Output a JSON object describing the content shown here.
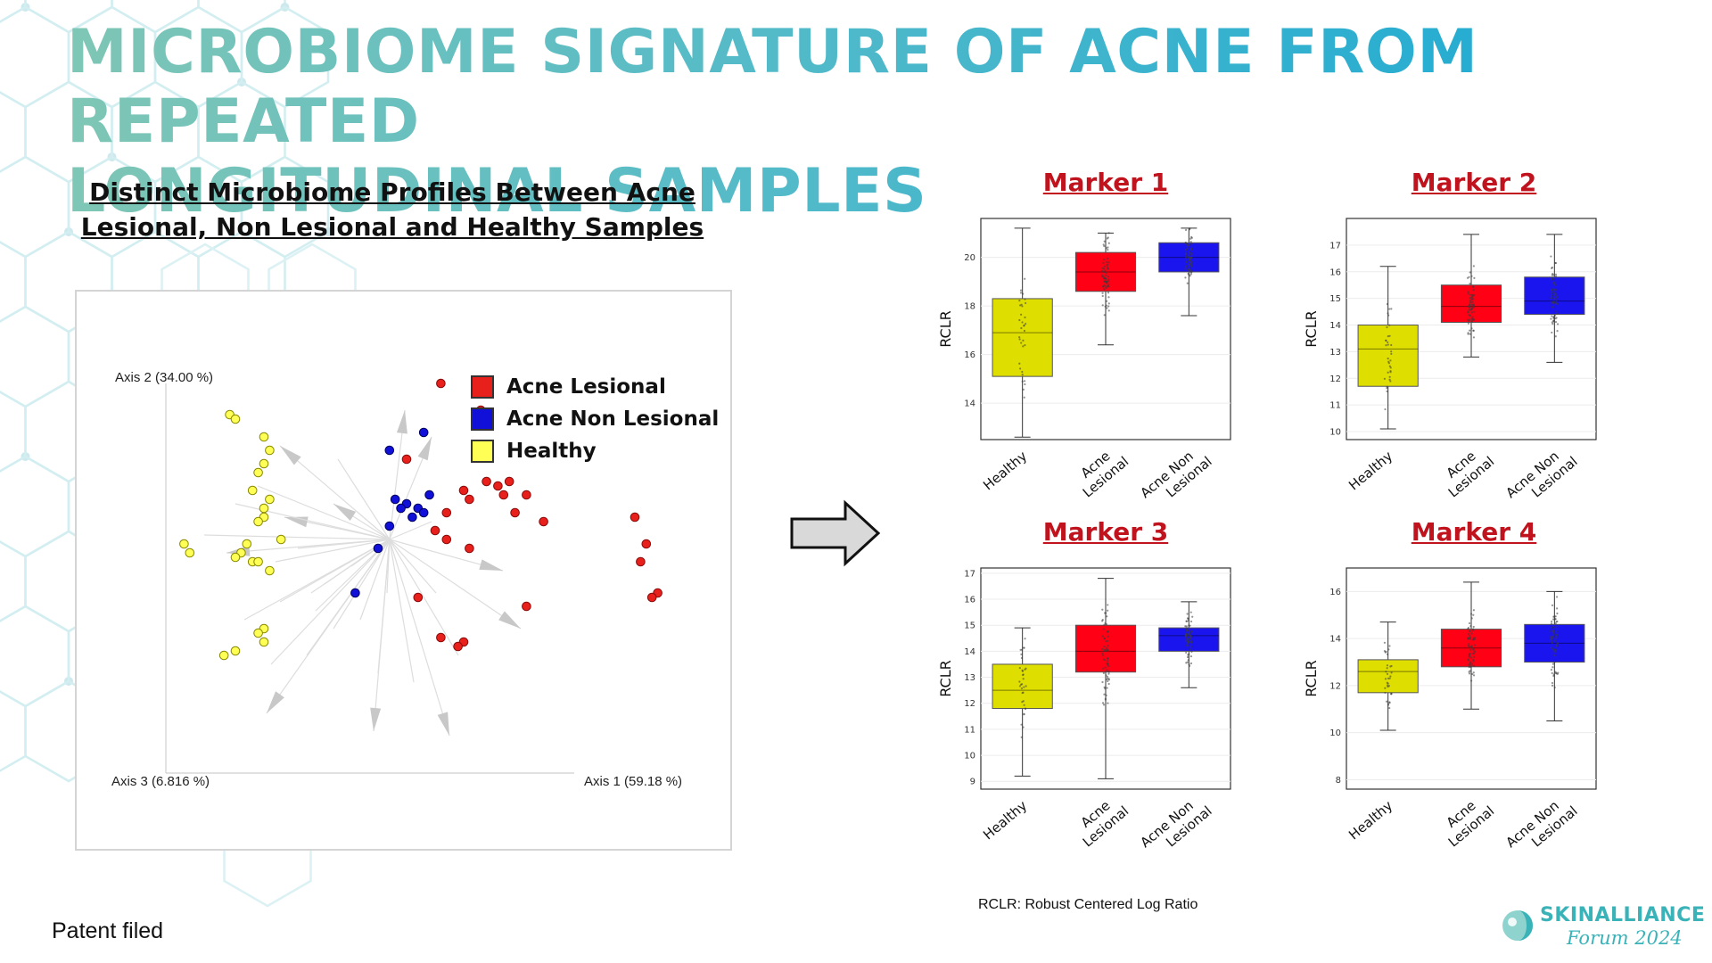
{
  "title": {
    "line1": "MICROBIOME SIGNATURE OF ACNE FROM REPEATED",
    "line2": "LONGITUDINAL SAMPLES"
  },
  "subtitle": {
    "line1": "Distinct Microbiome Profiles Between Acne",
    "line2": "Lesional, Non Lesional and Healthy Samples"
  },
  "colors": {
    "acne_lesional": "#e8201c",
    "acne_non_lesional": "#1010d8",
    "healthy": "#ffff55",
    "box_healthy": "#dede00",
    "box_lesional": "#ff0014",
    "box_non_lesional": "#1a14ee",
    "marker_title": "#c0131d",
    "title_gradient_start": "#7fc6b5",
    "title_gradient_end": "#1aa9d4"
  },
  "pcoa": {
    "axis1_label": "Axis 1 (59.18 %)",
    "axis2_label": "Axis 2 (34.00 %)",
    "axis3_label": "Axis 3 (6.816 %)",
    "legend": [
      {
        "label": "Acne Lesional",
        "color": "#e8201c"
      },
      {
        "label": "Acne Non Lesional",
        "color": "#1010d8"
      },
      {
        "label": "Healthy",
        "color": "#ffff55"
      }
    ]
  },
  "chart_data": [
    {
      "type": "scatter",
      "title": "",
      "xlabel": "Axis 1 (59.18 %)",
      "ylabel": "Axis 2 (34.00 %)",
      "zlabel": "Axis 3 (6.816 %)",
      "xlim": [
        0,
        100
      ],
      "ylim": [
        0,
        100
      ],
      "series": [
        {
          "name": "Acne Lesional",
          "points": [
            [
              61,
              87
            ],
            [
              68,
              81
            ],
            [
              55,
              70
            ],
            [
              65,
              63
            ],
            [
              69,
              65
            ],
            [
              71,
              64
            ],
            [
              73,
              65
            ],
            [
              66,
              61
            ],
            [
              72,
              62
            ],
            [
              74,
              58
            ],
            [
              76,
              62
            ],
            [
              62,
              58
            ],
            [
              60,
              54
            ],
            [
              62,
              52
            ],
            [
              79,
              56
            ],
            [
              95,
              57
            ],
            [
              97,
              51
            ],
            [
              96,
              47
            ],
            [
              99,
              40
            ],
            [
              98,
              39
            ],
            [
              76,
              37
            ],
            [
              66,
              50
            ],
            [
              61,
              30
            ],
            [
              65,
              29
            ],
            [
              64,
              28
            ],
            [
              57,
              39
            ]
          ]
        },
        {
          "name": "Acne Non Lesional",
          "points": [
            [
              58,
              76
            ],
            [
              52,
              72
            ],
            [
              59,
              62
            ],
            [
              53,
              61
            ],
            [
              55,
              60
            ],
            [
              57,
              59
            ],
            [
              58,
              58
            ],
            [
              54,
              59
            ],
            [
              56,
              57
            ],
            [
              52,
              55
            ],
            [
              50,
              50
            ],
            [
              46,
              40
            ]
          ]
        },
        {
          "name": "Healthy",
          "points": [
            [
              24,
              80
            ],
            [
              25,
              79
            ],
            [
              30,
              75
            ],
            [
              31,
              72
            ],
            [
              30,
              69
            ],
            [
              29,
              67
            ],
            [
              28,
              63
            ],
            [
              31,
              61
            ],
            [
              30,
              59
            ],
            [
              30,
              57
            ],
            [
              29,
              56
            ],
            [
              33,
              52
            ],
            [
              16,
              51
            ],
            [
              17,
              49
            ],
            [
              27,
              51
            ],
            [
              26,
              49
            ],
            [
              25,
              48
            ],
            [
              28,
              47
            ],
            [
              29,
              47
            ],
            [
              31,
              45
            ],
            [
              30,
              32
            ],
            [
              29,
              31
            ],
            [
              30,
              29
            ],
            [
              25,
              27
            ],
            [
              23,
              26
            ]
          ]
        }
      ]
    },
    {
      "type": "box",
      "title": "Marker 1",
      "ylabel": "RCLR",
      "categories": [
        "Healthy",
        "Acne\nLesional",
        "Acne Non\nLesional"
      ],
      "ylim": [
        12.5,
        21.6
      ],
      "yticks": [
        14,
        16,
        18,
        20
      ],
      "boxes": [
        {
          "name": "Healthy",
          "min": 12.6,
          "q1": 15.1,
          "median": 16.9,
          "q3": 18.3,
          "max": 21.2
        },
        {
          "name": "Acne Lesional",
          "min": 16.4,
          "q1": 18.6,
          "median": 19.4,
          "q3": 20.2,
          "max": 21.0
        },
        {
          "name": "Acne Non Lesional",
          "min": 17.6,
          "q1": 19.4,
          "median": 20.0,
          "q3": 20.6,
          "max": 21.2
        }
      ]
    },
    {
      "type": "box",
      "title": "Marker 2",
      "ylabel": "RCLR",
      "categories": [
        "Healthy",
        "Acne\nLesional",
        "Acne Non\nLesional"
      ],
      "ylim": [
        9.7,
        18.0
      ],
      "yticks": [
        10,
        11,
        12,
        13,
        14,
        15,
        16,
        17
      ],
      "boxes": [
        {
          "name": "Healthy",
          "min": 10.1,
          "q1": 11.7,
          "median": 13.1,
          "q3": 14.0,
          "max": 16.2
        },
        {
          "name": "Acne Lesional",
          "min": 12.8,
          "q1": 14.1,
          "median": 14.7,
          "q3": 15.5,
          "max": 17.4
        },
        {
          "name": "Acne Non Lesional",
          "min": 12.6,
          "q1": 14.4,
          "median": 14.9,
          "q3": 15.8,
          "max": 17.4
        }
      ]
    },
    {
      "type": "box",
      "title": "Marker 3",
      "ylabel": "RCLR",
      "categories": [
        "Healthy",
        "Acne\nLesional",
        "Acne Non\nLesional"
      ],
      "ylim": [
        8.7,
        17.2
      ],
      "yticks": [
        9,
        10,
        11,
        12,
        13,
        14,
        15,
        16,
        17
      ],
      "boxes": [
        {
          "name": "Healthy",
          "min": 9.2,
          "q1": 11.8,
          "median": 12.5,
          "q3": 13.5,
          "max": 14.9
        },
        {
          "name": "Acne Lesional",
          "min": 9.1,
          "q1": 13.2,
          "median": 14.0,
          "q3": 15.0,
          "max": 16.8
        },
        {
          "name": "Acne Non Lesional",
          "min": 12.6,
          "q1": 14.0,
          "median": 14.6,
          "q3": 14.9,
          "max": 15.9
        }
      ]
    },
    {
      "type": "box",
      "title": "Marker 4",
      "ylabel": "RCLR",
      "categories": [
        "Healthy",
        "Acne\nLesional",
        "Acne Non\nLesional"
      ],
      "ylim": [
        7.6,
        17.0
      ],
      "yticks": [
        8,
        10,
        12,
        14,
        16
      ],
      "boxes": [
        {
          "name": "Healthy",
          "min": 10.1,
          "q1": 11.7,
          "median": 12.6,
          "q3": 13.1,
          "max": 14.7
        },
        {
          "name": "Acne Lesional",
          "min": 11.0,
          "q1": 12.8,
          "median": 13.6,
          "q3": 14.4,
          "max": 16.4
        },
        {
          "name": "Acne Non Lesional",
          "min": 10.5,
          "q1": 13.0,
          "median": 13.8,
          "q3": 14.6,
          "max": 16.0
        }
      ]
    }
  ],
  "footnote": "RCLR: Robust Centered Log Ratio",
  "patent": "Patent filed",
  "logo": {
    "name": "SKINALLIANCE",
    "sub": "Forum 2024"
  }
}
